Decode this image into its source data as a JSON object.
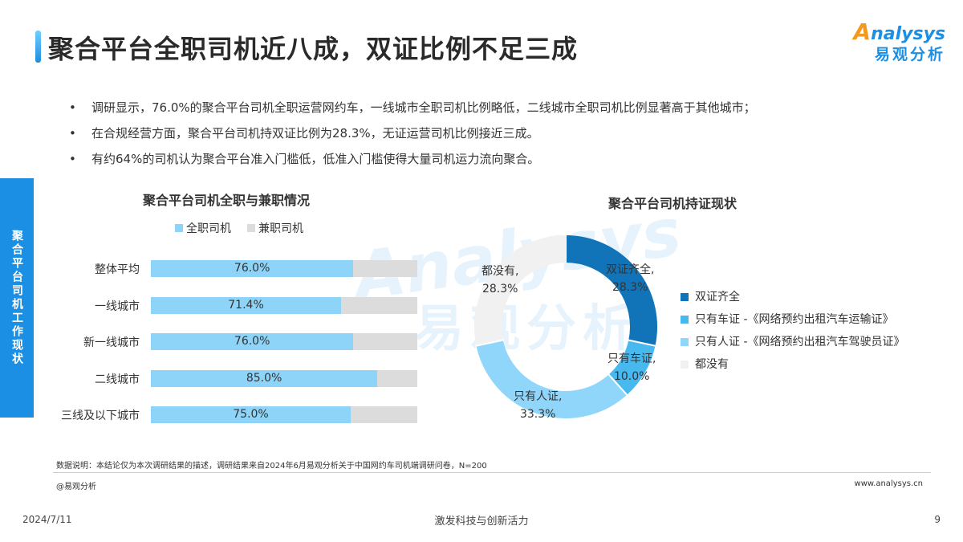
{
  "header": {
    "title": "聚合平台全职司机近八成，双证比例不足三成",
    "logo_en": "nalysys",
    "logo_en_a": "A",
    "logo_cn": "易观分析"
  },
  "bullets": [
    "调研显示，76.0%的聚合平台司机全职运营网约车，一线城市全职司机比例略低，二线城市全职司机比例显著高于其他城市；",
    "在合规经营方面，聚合平台司机持双证比例为28.3%，无证运营司机比例接近三成。",
    "有约64%的司机认为聚合平台准入门槛低，低准入门槛使得大量司机运力流向聚合。"
  ],
  "side_tab": "聚合平台司机工作现状",
  "watermark": {
    "en": "Analysys",
    "cn": "易观分析"
  },
  "colors": {
    "accent": "#1a8fe3",
    "full_time": "#8dd4f8",
    "part_time": "#dcdcdc",
    "dual": "#1274b8",
    "car_only": "#48b9ef",
    "driver_only": "#8fd6fa",
    "none": "#f1f1f1"
  },
  "chart_data": [
    {
      "type": "bar",
      "orientation": "horizontal",
      "stacked": true,
      "title": "聚合平台司机全职与兼职情况",
      "categories": [
        "整体平均",
        "一线城市",
        "新一线城市",
        "二线城市",
        "三线及以下城市"
      ],
      "series": [
        {
          "name": "全职司机",
          "values": [
            76.0,
            71.4,
            76.0,
            85.0,
            75.0
          ],
          "labels": [
            "76.0%",
            "71.4%",
            "76.0%",
            "85.0%",
            "75.0%"
          ]
        },
        {
          "name": "兼职司机",
          "values": [
            24.0,
            28.6,
            24.0,
            15.0,
            25.0
          ]
        }
      ],
      "xlim": [
        0,
        100
      ],
      "legend": "top"
    },
    {
      "type": "pie",
      "donut": true,
      "title": "聚合平台司机持证现状",
      "slices": [
        {
          "name": "双证齐全",
          "label": "双证齐全,",
          "value": 28.3,
          "value_label": "28.3%"
        },
        {
          "name": "只有车证 -《网络预约出租汽车运输证》",
          "label": "只有车证,",
          "value": 10.0,
          "value_label": "10.0%"
        },
        {
          "name": "只有人证 -《网络预约出租汽车驾驶员证》",
          "label": "只有人证,",
          "value": 33.3,
          "value_label": "33.3%"
        },
        {
          "name": "都没有",
          "label": "都没有,",
          "value": 28.3,
          "value_label": "28.3%"
        }
      ],
      "legend": "right"
    }
  ],
  "footer": {
    "note": "数据说明：本结论仅为本次调研结果的描述，调研结果来自2024年6月易观分析关于中国网约车司机端调研问卷，N=200",
    "source": "@易观分析",
    "site": "www.analysys.cn",
    "date": "2024/7/11",
    "slogan": "激发科技与创新活力",
    "page": "9"
  }
}
